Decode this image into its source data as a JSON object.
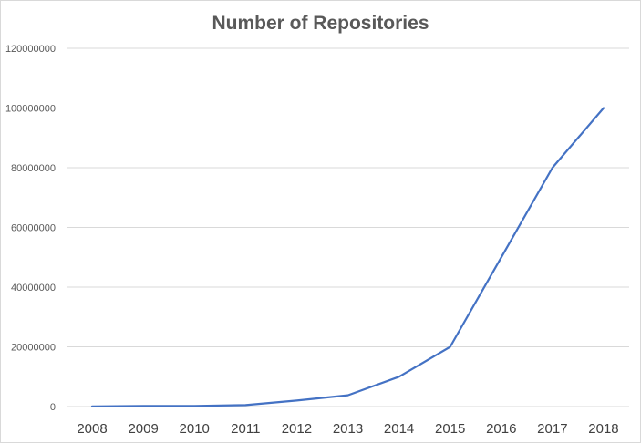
{
  "chart_data": {
    "type": "line",
    "title": "Number of Repositories",
    "xlabel": "",
    "ylabel": "",
    "categories": [
      "2008",
      "2009",
      "2010",
      "2011",
      "2012",
      "2013",
      "2014",
      "2015",
      "2016",
      "2017",
      "2018"
    ],
    "series": [
      {
        "values": [
          33000,
          200000,
          200000,
          500000,
          2000000,
          3800000,
          10000000,
          20000000,
          50000000,
          80000000,
          100000000
        ],
        "color": "#4472c4"
      }
    ],
    "ylim": [
      0,
      120000000
    ],
    "yticks": [
      "0",
      "20000000",
      "40000000",
      "60000000",
      "80000000",
      "100000000",
      "120000000"
    ],
    "grid": true,
    "legend": "none"
  }
}
